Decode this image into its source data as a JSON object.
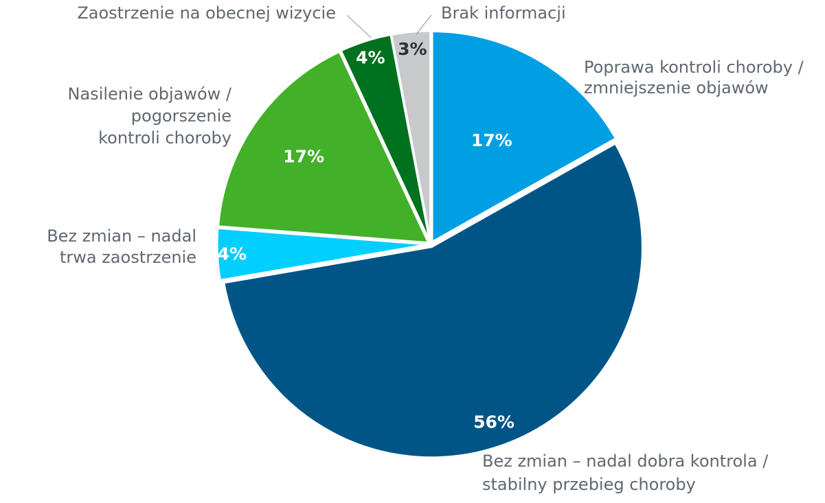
{
  "chart_data": {
    "type": "pie",
    "title": "",
    "legend": "none",
    "slices": [
      {
        "label": "Poprawa kontroli choroby / zmniejszenie objawów",
        "label_lines": [
          "Poprawa kontroli choroby /",
          "zmniejszenie objawów"
        ],
        "value": 17,
        "value_label": "17%",
        "color": "#009fe3",
        "text_color": "#ffffff"
      },
      {
        "label": "Bez zmian – nadal dobra kontrola / stabilny przebieg choroby",
        "label_lines": [
          "Bez zmian – nadal dobra kontrola /",
          "stabilny przebieg choroby"
        ],
        "value": 56,
        "value_label": "56%",
        "color": "#005587",
        "text_color": "#ffffff"
      },
      {
        "label": "Bez zmian – nadal trwa zaostrzenie",
        "label_lines": [
          "Bez zmian – nadal",
          "trwa zaostrzenie"
        ],
        "value": 4,
        "value_label": "4%",
        "color": "#00cfff",
        "text_color": "#ffffff"
      },
      {
        "label": "Nasilenie objawów / pogorszenie kontroli choroby",
        "label_lines": [
          "Nasilenie objawów /",
          "pogorszenie",
          "kontroli choroby"
        ],
        "value": 17,
        "value_label": "17%",
        "color": "#43b02a",
        "text_color": "#ffffff"
      },
      {
        "label": "Zaostrzenie na obecnej wizycie",
        "label_lines": [
          "Zaostrzenie na obecnej wizycie"
        ],
        "value": 4,
        "value_label": "4%",
        "color": "#00711f",
        "text_color": "#ffffff"
      },
      {
        "label": "Brak informacji",
        "label_lines": [
          "Brak informacji"
        ],
        "value": 3,
        "value_label": "3%",
        "color": "#c7c9cb",
        "text_color": "#2d3136"
      }
    ]
  }
}
